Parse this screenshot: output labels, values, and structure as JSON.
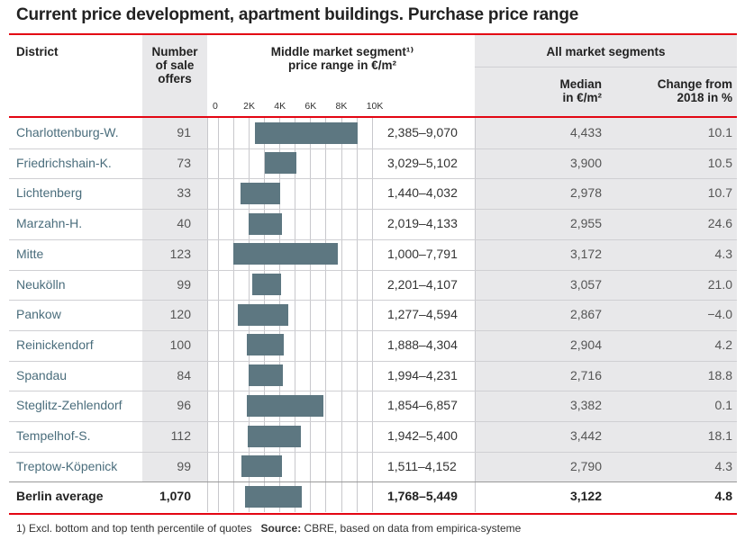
{
  "title": "Current price development, apartment buildings. Purchase price range",
  "headers": {
    "district": "District",
    "offers": [
      "Number",
      "of sale",
      "offers"
    ],
    "middle": [
      "Middle market segment¹⁾",
      "price range in €/m²"
    ],
    "all_segments": "All market segments",
    "median": [
      "Median",
      "in €/m²"
    ],
    "change": [
      "Change from",
      "2018 in %"
    ]
  },
  "chart_data": {
    "type": "bar",
    "subtype": "floating-range",
    "xlim": [
      0,
      10000
    ],
    "x_ticks": [
      "0",
      "2K",
      "4K",
      "6K",
      "8K",
      "10K"
    ],
    "tick_values": [
      0,
      2000,
      4000,
      6000,
      8000,
      10000
    ],
    "categories": [
      "Charlottenburg-W.",
      "Friedrichshain-K.",
      "Lichtenberg",
      "Marzahn-H.",
      "Mitte",
      "Neukölln",
      "Pankow",
      "Reinickendorf",
      "Spandau",
      "Steglitz-Zehlendorf",
      "Tempelhof-S.",
      "Treptow-Köpenick",
      "Berlin average"
    ],
    "offers": [
      "91",
      "73",
      "33",
      "40",
      "123",
      "99",
      "120",
      "100",
      "84",
      "96",
      "112",
      "99",
      "1,070"
    ],
    "range_low": [
      2385,
      3029,
      1440,
      2019,
      1000,
      2201,
      1277,
      1888,
      1994,
      1854,
      1942,
      1511,
      1768
    ],
    "range_high": [
      9070,
      5102,
      4032,
      4133,
      7791,
      4107,
      4594,
      4304,
      4231,
      6857,
      5400,
      4152,
      5449
    ],
    "range_labels": [
      "2,385–9,070",
      "3,029–5,102",
      "1,440–4,032",
      "2,019–4,133",
      "1,000–7,791",
      "2,201–4,107",
      "1,277–4,594",
      "1,888–4,304",
      "1,994–4,231",
      "1,854–6,857",
      "1,942–5,400",
      "1,511–4,152",
      "1,768–5,449"
    ],
    "median": [
      "4,433",
      "3,900",
      "2,978",
      "2,955",
      "3,172",
      "3,057",
      "2,867",
      "2,904",
      "2,716",
      "3,382",
      "3,442",
      "2,790",
      "3,122"
    ],
    "change": [
      "10.1",
      "10.5",
      "10.7",
      "24.6",
      "4.3",
      "21.0",
      "−4.0",
      "4.2",
      "18.8",
      "0.1",
      "18.1",
      "4.3",
      "4.8"
    ],
    "bar_color": "#5d7781",
    "accent_color": "#e30613"
  },
  "footnote": {
    "note": "1) Excl. bottom and top tenth percentile of quotes",
    "source_label": "Source:",
    "source_text": "CBRE, based on data from empirica-systeme"
  }
}
